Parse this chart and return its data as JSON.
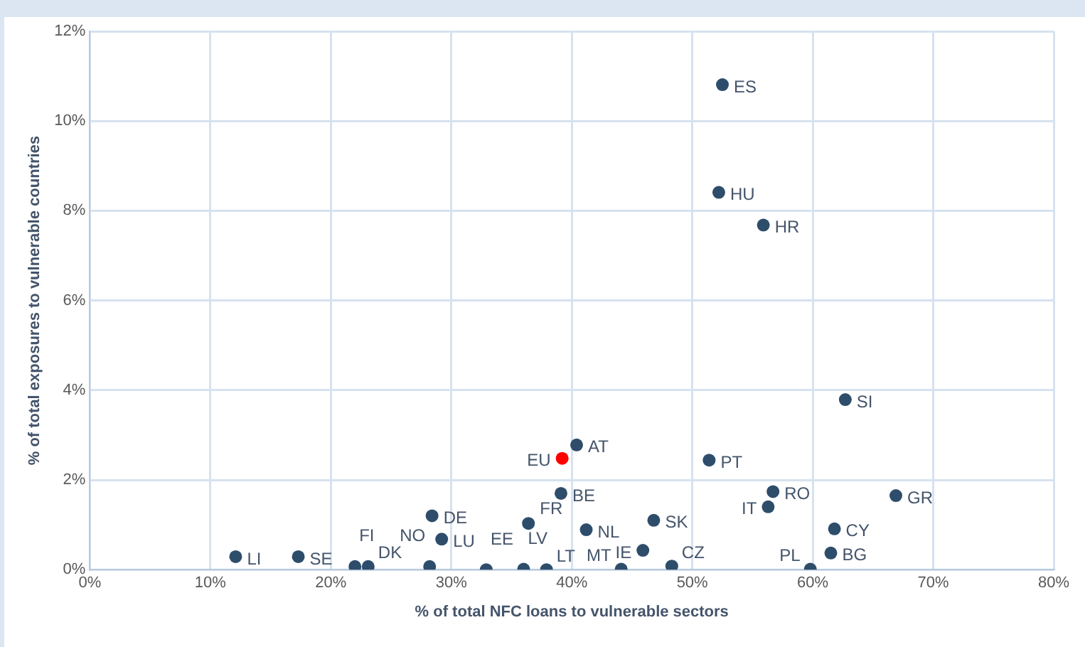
{
  "chart_data": {
    "type": "scatter",
    "xlabel": "% of total NFC loans to vulnerable sectors",
    "ylabel": "% of total exposures to vulnerable countries",
    "series": [
      {
        "color": "#2e4d6b",
        "x": [
          12.1,
          17.3,
          22.0,
          23.1,
          28.4,
          29.2,
          28.2,
          32.9,
          36.0,
          37.9,
          36.4,
          39.1,
          41.2,
          40.4,
          51.4,
          62.7,
          56.7,
          56.3,
          66.9,
          46.8,
          61.8,
          45.9,
          61.5,
          48.3,
          44.1,
          59.8,
          52.5,
          52.2,
          55.9
        ],
        "values": [
          0.29,
          0.29,
          0.07,
          0.07,
          1.2,
          0.68,
          0.07,
          0.0,
          0.01,
          0.0,
          1.03,
          1.7,
          0.89,
          2.78,
          2.44,
          3.79,
          1.74,
          1.4,
          1.65,
          1.1,
          0.91,
          0.43,
          0.37,
          0.08,
          0.01,
          0.01,
          10.81,
          8.41,
          7.68
        ]
      },
      {
        "color": "#ff0000",
        "x": [
          39.2
        ],
        "values": [
          2.48
        ]
      }
    ],
    "annotations": [
      {
        "text": "LI",
        "x": 12.1,
        "y": 0.29
      },
      {
        "text": "SE",
        "x": 17.3,
        "y": 0.29
      },
      {
        "text": "FI",
        "x": 22.0,
        "y": 0.07
      },
      {
        "text": "DK",
        "x": 23.1,
        "y": 0.07
      },
      {
        "text": "DE",
        "x": 28.4,
        "y": 1.2
      },
      {
        "text": "LU",
        "x": 29.2,
        "y": 0.68
      },
      {
        "text": "NO",
        "x": 28.2,
        "y": 0.07
      },
      {
        "text": "EE",
        "x": 32.9,
        "y": 0.0
      },
      {
        "text": "LV",
        "x": 36.0,
        "y": 0.01
      },
      {
        "text": "LT",
        "x": 37.9,
        "y": 0.0
      },
      {
        "text": "FR",
        "x": 36.4,
        "y": 1.03
      },
      {
        "text": "BE",
        "x": 39.1,
        "y": 1.7
      },
      {
        "text": "NL",
        "x": 41.2,
        "y": 0.89
      },
      {
        "text": "AT",
        "x": 40.4,
        "y": 2.78
      },
      {
        "text": "EU",
        "x": 39.2,
        "y": 2.48
      },
      {
        "text": "PT",
        "x": 51.4,
        "y": 2.44
      },
      {
        "text": "SI",
        "x": 62.7,
        "y": 3.79
      },
      {
        "text": "RO",
        "x": 56.7,
        "y": 1.74
      },
      {
        "text": "IT",
        "x": 56.3,
        "y": 1.4
      },
      {
        "text": "GR",
        "x": 66.9,
        "y": 1.65
      },
      {
        "text": "SK",
        "x": 46.8,
        "y": 1.1
      },
      {
        "text": "CY",
        "x": 61.8,
        "y": 0.91
      },
      {
        "text": "IE",
        "x": 45.9,
        "y": 0.43
      },
      {
        "text": "BG",
        "x": 61.5,
        "y": 0.37
      },
      {
        "text": "CZ",
        "x": 48.3,
        "y": 0.08
      },
      {
        "text": "MT",
        "x": 44.1,
        "y": 0.01
      },
      {
        "text": "PL",
        "x": 59.8,
        "y": 0.01
      },
      {
        "text": "ES",
        "x": 52.5,
        "y": 10.81
      },
      {
        "text": "HU",
        "x": 52.2,
        "y": 8.41
      },
      {
        "text": "HR",
        "x": 55.9,
        "y": 7.68
      }
    ],
    "xlim": [
      0,
      80
    ],
    "xticks": [
      {
        "value": 0,
        "label": "0%"
      },
      {
        "value": 10,
        "label": "10%"
      },
      {
        "value": 20,
        "label": "20%"
      },
      {
        "value": 30,
        "label": "30%"
      },
      {
        "value": 40,
        "label": "40%"
      },
      {
        "value": 50,
        "label": "50%"
      },
      {
        "value": 60,
        "label": "60%"
      },
      {
        "value": 70,
        "label": "70%"
      },
      {
        "value": 80,
        "label": "80%"
      }
    ],
    "ylim": [
      0,
      12
    ],
    "yticks": [
      {
        "value": 0,
        "label": "0%"
      },
      {
        "value": 2,
        "label": "2%"
      },
      {
        "value": 4,
        "label": "4%"
      },
      {
        "value": 6,
        "label": "6%"
      },
      {
        "value": 8,
        "label": "8%"
      },
      {
        "value": 10,
        "label": "10%"
      },
      {
        "value": 12,
        "label": "12%"
      }
    ],
    "grid": true,
    "legend": false,
    "marker": "circle"
  }
}
